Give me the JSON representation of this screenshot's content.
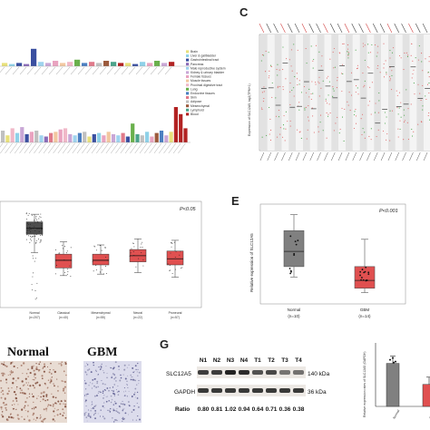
{
  "panels": {
    "c_letter": "C",
    "e_letter": "E",
    "g_letter": "G"
  },
  "tissue_legend": {
    "items": [
      {
        "label": "Brain",
        "color": "#e8e07a"
      },
      {
        "label": "Liver & gallbladder",
        "color": "#8fd1e8"
      },
      {
        "label": "Gastrointestinal tract",
        "color": "#3a4fa0"
      },
      {
        "label": "Pancreas",
        "color": "#8a6bb8"
      },
      {
        "label": "Male reproductive system",
        "color": "#9fd3ee"
      },
      {
        "label": "Kidney & urinary bladder",
        "color": "#c9a7d6"
      },
      {
        "label": "Female tissues",
        "color": "#e9a3c0"
      },
      {
        "label": "Muscle tissues",
        "color": "#f2c7a0"
      },
      {
        "label": "Proximal digestive tract",
        "color": "#f0b8c8"
      },
      {
        "label": "Lung",
        "color": "#6ab04c"
      },
      {
        "label": "Endocrine tissues",
        "color": "#4b7fc1"
      },
      {
        "label": "Skin",
        "color": "#e07a8a"
      },
      {
        "label": "Adipose",
        "color": "#c0c0c0"
      },
      {
        "label": "Mesenchymal",
        "color": "#9c5a3c"
      },
      {
        "label": "Lymphoid",
        "color": "#4aa38a"
      },
      {
        "label": "Blood",
        "color": "#b22222"
      }
    ]
  },
  "chart_data": [
    {
      "type": "bar",
      "panel": "A (top)",
      "note": "tissue RNA expression of SLC12A5, top strip",
      "values": [
        0.3,
        0.2,
        0.3,
        0.2,
        1.6,
        0.4,
        0.3,
        0.5,
        0.3,
        0.4,
        0.6,
        0.3,
        0.4,
        0.3,
        0.5,
        0.4,
        0.3,
        0.3,
        0.2,
        0.4,
        0.3,
        0.5,
        0.3,
        0.4
      ],
      "colors": [
        "#e8e07a",
        "#8fd1e8",
        "#3a4fa0",
        "#8a6bb8",
        "#3a4fa0",
        "#9fd3ee",
        "#c9a7d6",
        "#e9a3c0",
        "#f2c7a0",
        "#f0b8c8",
        "#6ab04c",
        "#4b7fc1",
        "#e07a8a",
        "#c0c0c0",
        "#9c5a3c",
        "#4aa38a",
        "#b22222",
        "#e8e07a",
        "#3a4fa0",
        "#8fd1e8",
        "#e9a3c0",
        "#6ab04c",
        "#c9a7d6",
        "#b22222"
      ]
    },
    {
      "type": "bar",
      "panel": "A (bottom)",
      "note": "tissue expression of SLC12A5, bottom strip",
      "values": [
        1.0,
        0.6,
        1.2,
        0.8,
        1.3,
        0.7,
        0.9,
        1.0,
        0.6,
        0.5,
        0.8,
        0.9,
        1.1,
        1.2,
        0.7,
        0.6,
        0.8,
        0.9,
        0.5,
        0.7,
        0.8,
        0.6,
        0.9,
        0.7,
        0.6,
        0.8,
        0.5,
        1.6,
        0.7,
        0.6,
        0.9,
        0.5,
        0.8,
        1.0,
        0.6,
        0.9,
        3.0,
        2.4,
        1.2
      ],
      "colors": [
        "#c0c0c0",
        "#e8e07a",
        "#f0b8c8",
        "#8fd1e8",
        "#c9a7d6",
        "#3a4fa0",
        "#e9a3c0",
        "#c0c0c0",
        "#9fd3ee",
        "#8a6bb8",
        "#e07a8a",
        "#f2c7a0",
        "#e9a3c0",
        "#f0b8c8",
        "#c9a7d6",
        "#9fd3ee",
        "#4b7fc1",
        "#c0c0c0",
        "#e8e07a",
        "#3a4fa0",
        "#8fd1e8",
        "#e9a3c0",
        "#f2c7a0",
        "#c9a7d6",
        "#9fd3ee",
        "#e07a8a",
        "#3a4fa0",
        "#6ab04c",
        "#4aa38a",
        "#c0c0c0",
        "#8fd1e8",
        "#e9a3c0",
        "#9c5a3c",
        "#4b7fc1",
        "#c9a7d6",
        "#e8e07a",
        "#b22222",
        "#b22222",
        "#b22222"
      ]
    },
    {
      "type": "scatter",
      "panel": "C",
      "ylabel": "Expression of SLC12A5, log2(TPM+1)",
      "n_columns": 24,
      "colors": {
        "tumor": "#e06060",
        "normal": "#3aa03a"
      }
    },
    {
      "type": "box",
      "panel": "D",
      "pvalue": "P<0.05",
      "categories": [
        "Normal",
        "Classical",
        "Mesenchymal",
        "Neural",
        "Proneural"
      ],
      "ns": [
        "(n=207)",
        "(n=40)",
        "(n=55)",
        "(n=22)",
        "(n=57)"
      ],
      "boxes": [
        {
          "q1": 7.6,
          "median": 8.0,
          "q3": 8.4,
          "min": 6.4,
          "max": 8.9,
          "color": "#4d4d4d"
        },
        {
          "q1": 5.4,
          "median": 5.9,
          "q3": 6.3,
          "min": 4.9,
          "max": 7.1,
          "color": "#e05050"
        },
        {
          "q1": 5.6,
          "median": 5.9,
          "q3": 6.3,
          "min": 5.0,
          "max": 6.9,
          "color": "#e05050"
        },
        {
          "q1": 5.8,
          "median": 6.2,
          "q3": 6.6,
          "min": 5.1,
          "max": 7.3,
          "color": "#e05050"
        },
        {
          "q1": 5.6,
          "median": 6.0,
          "q3": 6.5,
          "min": 4.8,
          "max": 7.2,
          "color": "#e05050"
        }
      ],
      "ylim": [
        3,
        9.5
      ]
    },
    {
      "type": "box",
      "panel": "E",
      "pvalue": "P<0.001",
      "ylabel": "Relative expression of SLC12A5",
      "categories": [
        "Normal",
        "GBM"
      ],
      "ns": [
        "(n=10)",
        "(n=14)"
      ],
      "boxes": [
        {
          "q1": 0.62,
          "median": 0.97,
          "q3": 1.45,
          "min": 0.38,
          "max": 1.82,
          "color": "#808080"
        },
        {
          "q1": 0.12,
          "median": 0.3,
          "q3": 0.62,
          "min": 0.02,
          "max": 1.25,
          "color": "#e05050"
        }
      ],
      "ylim": [
        -0.2,
        2.0
      ]
    },
    {
      "type": "bar",
      "panel": "G (right)",
      "ylabel": "Relative expression rates of SLC12A5 (GAPDH)",
      "categories": [
        "Normal",
        "GBM"
      ],
      "values": [
        0.88,
        0.45
      ],
      "colors": [
        "#808080",
        "#e05050"
      ],
      "ylim": [
        0,
        1.3
      ]
    }
  ],
  "panel_f": {
    "normal_title": "Normal",
    "gbm_title": "GBM"
  },
  "western_blot": {
    "lanes": [
      "N1",
      "N2",
      "N3",
      "N4",
      "T1",
      "T2",
      "T3",
      "T4"
    ],
    "rows": [
      "SLC12A5",
      "GAPDH"
    ],
    "kda": [
      "140 kDa",
      "36 kDa"
    ],
    "ratio_label": "Ratio",
    "ratios": [
      "0.80",
      "0.81",
      "1.02",
      "0.94",
      "0.64",
      "0.71",
      "0.36",
      "0.38"
    ]
  }
}
